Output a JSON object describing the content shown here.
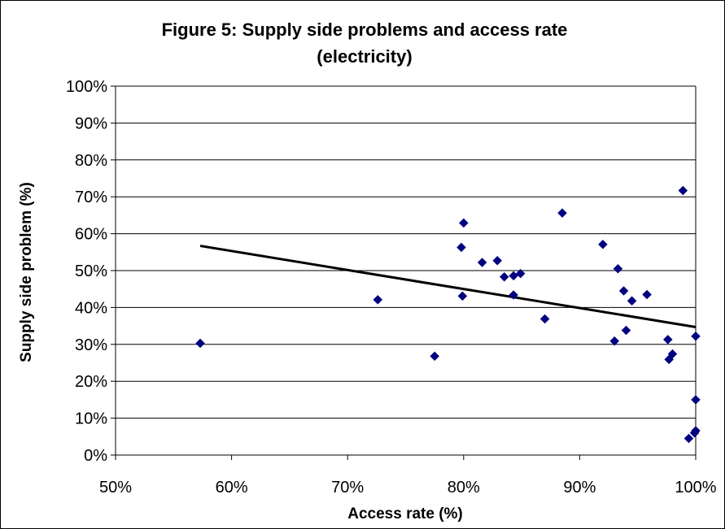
{
  "chart_data": {
    "type": "scatter",
    "title_lines": [
      "Figure 5: Supply side problems and access rate",
      "(electricity)"
    ],
    "xlabel": "Access rate (%)",
    "ylabel": "Supply side problem (%)",
    "xlim": [
      50,
      100
    ],
    "ylim": [
      0,
      100
    ],
    "x_ticks": [
      "50%",
      "60%",
      "70%",
      "80%",
      "90%",
      "100%"
    ],
    "y_ticks": [
      "0%",
      "10%",
      "20%",
      "30%",
      "40%",
      "50%",
      "60%",
      "70%",
      "80%",
      "90%",
      "100%"
    ],
    "grid": "horizontal",
    "legend": "none",
    "marker_color": "#000080",
    "trendline_color": "#000000",
    "points": [
      {
        "x": 57.3,
        "y": 30.3
      },
      {
        "x": 72.6,
        "y": 42.1
      },
      {
        "x": 77.5,
        "y": 26.8
      },
      {
        "x": 79.8,
        "y": 56.3
      },
      {
        "x": 80.0,
        "y": 62.9
      },
      {
        "x": 79.9,
        "y": 43.1
      },
      {
        "x": 81.6,
        "y": 52.2
      },
      {
        "x": 82.9,
        "y": 52.7
      },
      {
        "x": 83.5,
        "y": 48.3
      },
      {
        "x": 84.3,
        "y": 48.6
      },
      {
        "x": 84.3,
        "y": 43.4
      },
      {
        "x": 84.9,
        "y": 49.2
      },
      {
        "x": 87.0,
        "y": 36.9
      },
      {
        "x": 88.5,
        "y": 65.6
      },
      {
        "x": 92.0,
        "y": 57.1
      },
      {
        "x": 93.0,
        "y": 30.9
      },
      {
        "x": 93.3,
        "y": 50.5
      },
      {
        "x": 93.8,
        "y": 44.5
      },
      {
        "x": 94.0,
        "y": 33.8
      },
      {
        "x": 94.5,
        "y": 41.8
      },
      {
        "x": 95.8,
        "y": 43.5
      },
      {
        "x": 97.6,
        "y": 31.3
      },
      {
        "x": 97.7,
        "y": 25.9
      },
      {
        "x": 98.0,
        "y": 27.4
      },
      {
        "x": 98.9,
        "y": 71.7
      },
      {
        "x": 99.4,
        "y": 4.5
      },
      {
        "x": 99.9,
        "y": 6.0
      },
      {
        "x": 100.0,
        "y": 6.6
      },
      {
        "x": 100.0,
        "y": 15.0
      },
      {
        "x": 100.0,
        "y": 32.2
      }
    ],
    "trendline": {
      "x": [
        57.3,
        100.0
      ],
      "y": [
        56.7,
        34.7
      ]
    }
  }
}
